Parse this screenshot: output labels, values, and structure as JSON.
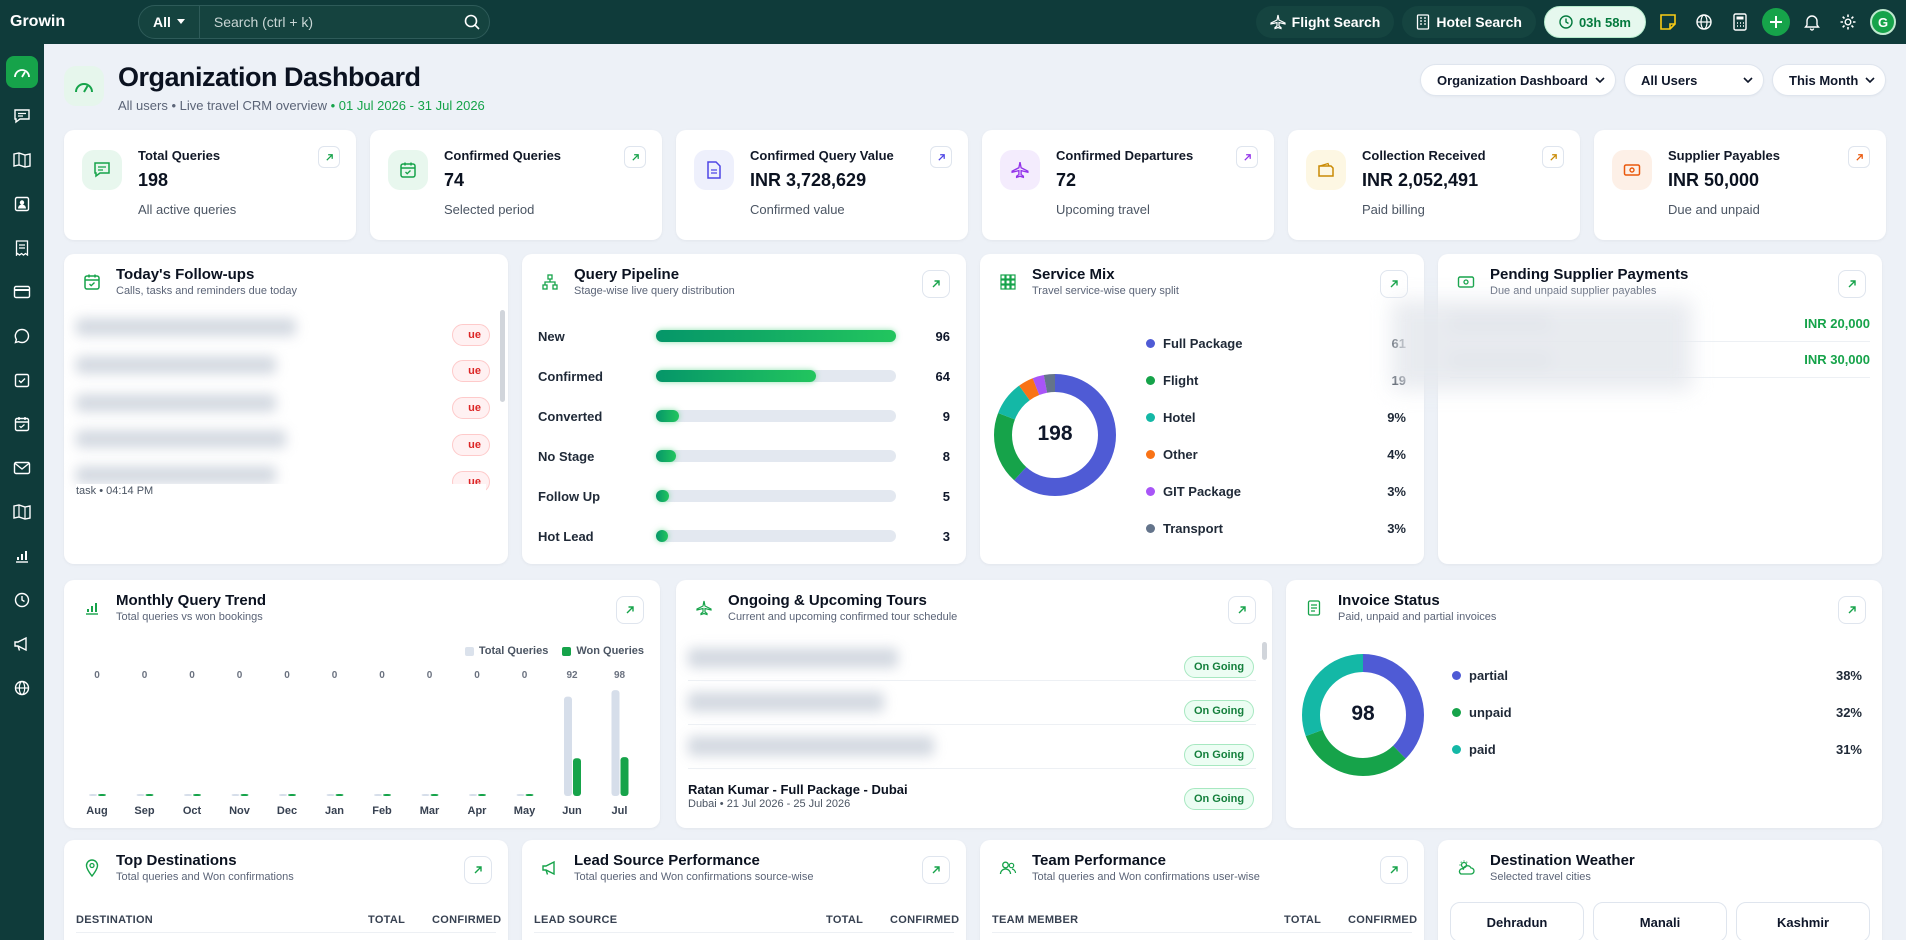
{
  "app": {
    "brand": "Growin"
  },
  "search": {
    "scope": "All",
    "placeholder": "Search (ctrl + k)"
  },
  "topbar": {
    "flight_search": "Flight Search",
    "hotel_search": "Hotel Search",
    "timer": "03h 58m",
    "avatar": "G"
  },
  "header": {
    "title": "Organization Dashboard",
    "subtitle": "All users • Live travel CRM overview",
    "date_range": "• 01 Jul 2026 - 31 Jul 2026",
    "filters": [
      "Organization Dashboard",
      "All Users",
      "This Month"
    ]
  },
  "stats": [
    {
      "label": "Total Queries",
      "value": "198",
      "caption": "All active queries",
      "color": "#16a34a",
      "bg": "#e8f7ee"
    },
    {
      "label": "Confirmed Queries",
      "value": "74",
      "caption": "Selected period",
      "color": "#16a34a",
      "bg": "#e8f7ee"
    },
    {
      "label": "Confirmed Query Value",
      "value": "INR 3,728,629",
      "caption": "Confirmed value",
      "color": "#4f46e5",
      "bg": "#eef0fc"
    },
    {
      "label": "Confirmed Departures",
      "value": "72",
      "caption": "Upcoming travel",
      "color": "#9333ea",
      "bg": "#f4ecfd"
    },
    {
      "label": "Collection Received",
      "value": "INR 2,052,491",
      "caption": "Paid billing",
      "color": "#ca8a04",
      "bg": "#fdf7e3"
    },
    {
      "label": "Supplier Payables",
      "value": "INR 50,000",
      "caption": "Due and unpaid",
      "color": "#ea580c",
      "bg": "#fdf0e7"
    }
  ],
  "followups": {
    "title": "Today's Follow-ups",
    "subtitle": "Calls, tasks and reminders due today",
    "badge": "ue",
    "last_item_meta": "task • 04:14 PM"
  },
  "pipeline": {
    "title": "Query Pipeline",
    "subtitle": "Stage-wise live query distribution",
    "stages": [
      {
        "label": "New",
        "value": 96
      },
      {
        "label": "Confirmed",
        "value": 64
      },
      {
        "label": "Converted",
        "value": 9
      },
      {
        "label": "No Stage",
        "value": 8
      },
      {
        "label": "Follow Up",
        "value": 5
      },
      {
        "label": "Hot Lead",
        "value": 3
      }
    ]
  },
  "service_mix": {
    "title": "Service Mix",
    "subtitle": "Travel service-wise query split",
    "total": "198",
    "items": [
      {
        "label": "Full Package",
        "pct": "61",
        "value": 61,
        "color": "#4f5bd5"
      },
      {
        "label": "Flight",
        "pct": "19",
        "value": 19,
        "color": "#16a34a"
      },
      {
        "label": "Hotel",
        "pct": "9%",
        "value": 9,
        "color": "#14b8a6"
      },
      {
        "label": "Other",
        "pct": "4%",
        "value": 4,
        "color": "#f97316"
      },
      {
        "label": "GIT Package",
        "pct": "3%",
        "value": 3,
        "color": "#a855f7"
      },
      {
        "label": "Transport",
        "pct": "3%",
        "value": 3,
        "color": "#64748b"
      }
    ]
  },
  "supplier_payments": {
    "title": "Pending Supplier Payments",
    "subtitle": "Due and unpaid supplier payables",
    "amounts": [
      "INR 20,000",
      "INR 30,000"
    ]
  },
  "trend": {
    "title": "Monthly Query Trend",
    "subtitle": "Total queries vs won bookings",
    "legend": [
      "Total Queries",
      "Won Queries"
    ],
    "chart_data": {
      "type": "bar",
      "categories": [
        "Aug",
        "Sep",
        "Oct",
        "Nov",
        "Dec",
        "Jan",
        "Feb",
        "Mar",
        "Apr",
        "May",
        "Jun",
        "Jul"
      ],
      "top_labels": [
        "0",
        "0",
        "0",
        "0",
        "0",
        "0",
        "0",
        "0",
        "0",
        "0",
        "92",
        "98"
      ],
      "series": [
        {
          "name": "Total Queries",
          "values": [
            0,
            0,
            0,
            0,
            0,
            0,
            0,
            0,
            0,
            0,
            92,
            98
          ]
        },
        {
          "name": "Won Queries",
          "values": [
            0,
            0,
            0,
            0,
            0,
            0,
            0,
            0,
            0,
            0,
            35,
            36
          ]
        }
      ],
      "ylim": [
        0,
        100
      ]
    }
  },
  "tours": {
    "title": "Ongoing & Upcoming Tours",
    "subtitle": "Current and upcoming confirmed tour schedule",
    "status": "On Going",
    "visible_tour": {
      "name": "Ratan Kumar - Full Package - Dubai",
      "meta": "Dubai • 21 Jul 2026 - 25 Jul 2026"
    }
  },
  "invoice": {
    "title": "Invoice Status",
    "subtitle": "Paid, unpaid and partial invoices",
    "total": "98",
    "items": [
      {
        "label": "partial",
        "pct": "38%",
        "value": 38,
        "color": "#4f5bd5"
      },
      {
        "label": "unpaid",
        "pct": "32%",
        "value": 32,
        "color": "#16a34a"
      },
      {
        "label": "paid",
        "pct": "31%",
        "value": 31,
        "color": "#14b8a6"
      }
    ]
  },
  "destinations": {
    "title": "Top Destinations",
    "subtitle": "Total queries and Won confirmations",
    "cols": [
      "DESTINATION",
      "TOTAL",
      "CONFIRMED"
    ]
  },
  "lead_source": {
    "title": "Lead Source Performance",
    "subtitle": "Total queries and Won confirmations source-wise",
    "cols": [
      "LEAD SOURCE",
      "TOTAL",
      "CONFIRMED"
    ]
  },
  "team": {
    "title": "Team Performance",
    "subtitle": "Total queries and Won confirmations user-wise",
    "cols": [
      "TEAM MEMBER",
      "TOTAL",
      "CONFIRMED"
    ]
  },
  "weather": {
    "title": "Destination Weather",
    "subtitle": "Selected travel cities",
    "cities": [
      "Dehradun",
      "Manali",
      "Kashmir"
    ]
  }
}
